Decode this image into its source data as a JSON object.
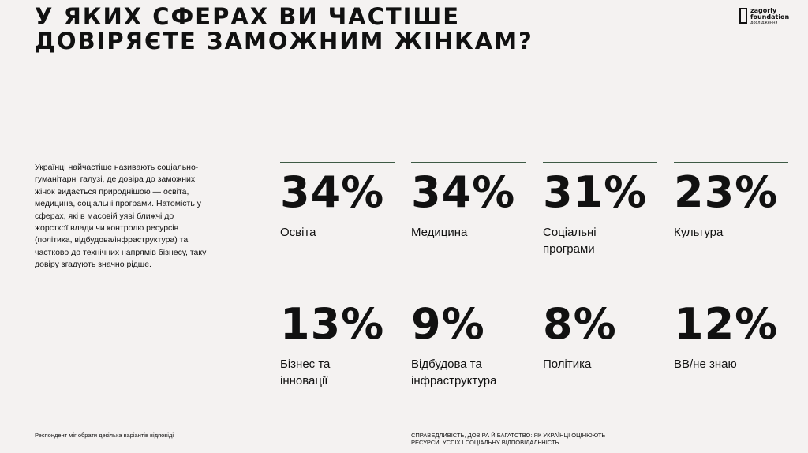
{
  "header": {
    "title": "У ЯКИХ СФЕРАХ ВИ ЧАСТІШЕ\nДОВІРЯЄТЕ ЗАМОЖНИМ ЖІНКАМ?",
    "logo": {
      "name": "zagoriy\nfoundation",
      "sub": "дослідження"
    }
  },
  "description": "Українці найчастіше називають соціально-гуманітарні галузі, де довіра до заможних жінок видається природнішою — освіта, медицина, соціальні програми. Натомість у сферах, які в масовій уяві ближчі до жорсткої влади чи контролю ресурсів (політика, відбудова/інфраструктура) та частково до технічних напрямів бізнесу, таку довіру згадують значно рідше.",
  "stats": [
    {
      "value": "34%",
      "label": "Освіта"
    },
    {
      "value": "34%",
      "label": "Медицина"
    },
    {
      "value": "31%",
      "label": "Соціальні\nпрограми"
    },
    {
      "value": "23%",
      "label": "Культура"
    },
    {
      "value": "13%",
      "label": "Бізнес та\nінновації"
    },
    {
      "value": "9%",
      "label": "Відбудова та\nінфраструктура"
    },
    {
      "value": "8%",
      "label": "Політика"
    },
    {
      "value": "12%",
      "label": "ВВ/не знаю"
    }
  ],
  "footer": {
    "note": "Респондент міг обрати декілька варіантів відповіді",
    "source": "СПРАВЕДЛИВІСТЬ, ДОВІРА Й БАГАТСТВО: ЯК УКРАЇНЦІ ОЦІНЮЮТЬ\nРЕСУРСИ, УСПІХ І СОЦІАЛЬНУ ВІДПОВІДАЛЬНІСТЬ"
  }
}
